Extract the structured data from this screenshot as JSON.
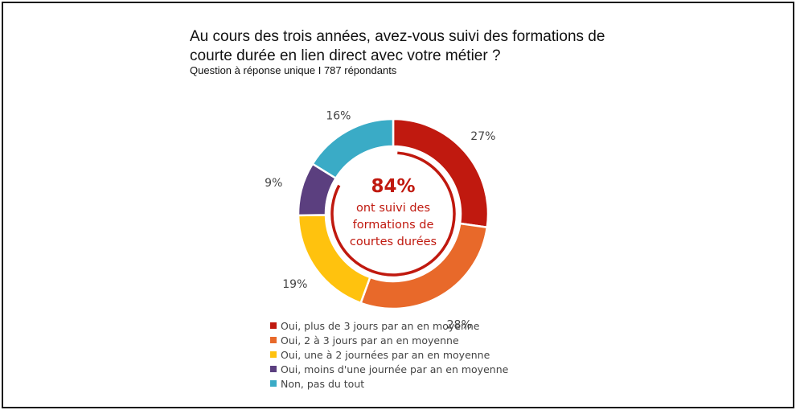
{
  "chart_data": {
    "type": "pie",
    "variant": "donut",
    "title": "Au cours des trois années, avez-vous suivi des formations de courte durée en lien direct avec votre métier ?",
    "subtitle": "Question à réponse unique I 787 répondants",
    "center_value": "84%",
    "center_text": [
      "ont suivi des",
      "formations de",
      "courtes durées"
    ],
    "categories": [
      "Oui, plus de 3 jours par an en moyenne",
      "Oui, 2 à 3 jours par an en moyenne",
      "Oui, une à 2 journées par an en moyenne",
      "Oui, moins d'une journée par an en moyenne",
      "Non, pas du tout"
    ],
    "values": [
      27,
      28,
      19,
      9,
      16
    ],
    "labels": [
      "27%",
      "28%",
      "19%",
      "9%",
      "16%"
    ],
    "colors": [
      "#c0190f",
      "#e8692a",
      "#ffc20e",
      "#5b3f7f",
      "#3aabc6"
    ],
    "highlight_color": "#c0190f",
    "legend_position": "bottom"
  }
}
